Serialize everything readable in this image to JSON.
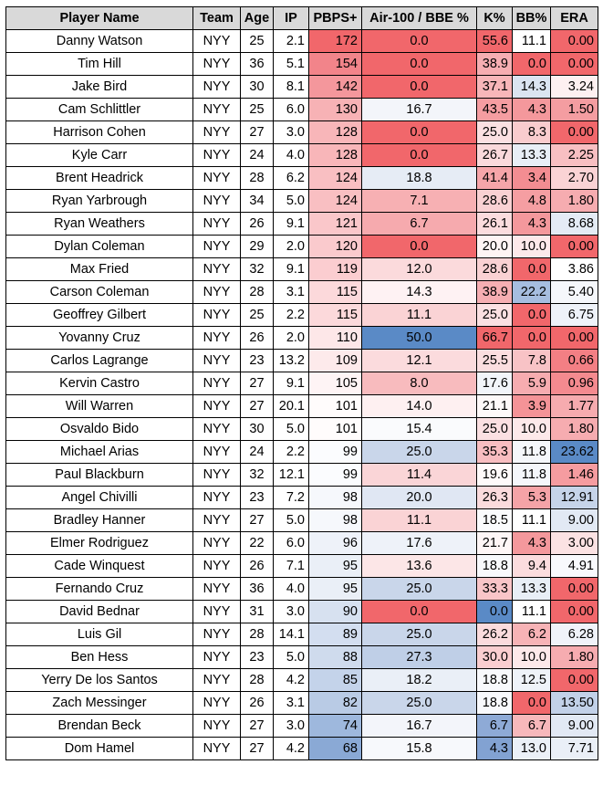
{
  "table": {
    "columns": [
      "Player Name",
      "Team",
      "Age",
      "IP",
      "PBPS+",
      "Air-100 / BBE %",
      "K%",
      "BB%",
      "ERA"
    ],
    "rows": [
      {
        "name": "Danny Watson",
        "team": "NYY",
        "age": "25",
        "ip": "2.1",
        "pbps": "172",
        "air": "0.0",
        "k": "55.6",
        "bb": "11.1",
        "era": "0.00",
        "c": {
          "pbps": "#f1676b",
          "air": "#f1676b",
          "k": "#f1676b",
          "bb": "#ffffff",
          "era": "#f1676b"
        }
      },
      {
        "name": "Tim Hill",
        "team": "NYY",
        "age": "36",
        "ip": "5.1",
        "pbps": "154",
        "air": "0.0",
        "k": "38.9",
        "bb": "0.0",
        "era": "0.00",
        "c": {
          "pbps": "#f2848a",
          "air": "#f1676b",
          "k": "#f6aeb2",
          "bb": "#f1676b",
          "era": "#f1676b"
        }
      },
      {
        "name": "Jake Bird",
        "team": "NYY",
        "age": "30",
        "ip": "8.1",
        "pbps": "142",
        "air": "0.0",
        "k": "37.1",
        "bb": "14.3",
        "era": "3.24",
        "c": {
          "pbps": "#f4979c",
          "air": "#f1676b",
          "k": "#f7b6b9",
          "bb": "#dbe4f1",
          "era": "#fdf0f1"
        }
      },
      {
        "name": "Cam Schlittler",
        "team": "NYY",
        "age": "25",
        "ip": "6.0",
        "pbps": "130",
        "air": "16.7",
        "k": "43.5",
        "bb": "4.3",
        "era": "1.50",
        "c": {
          "pbps": "#f7b2b5",
          "air": "#f3f5fa",
          "k": "#f59da1",
          "bb": "#f4989c",
          "era": "#f49da1"
        }
      },
      {
        "name": "Harrison Cohen",
        "team": "NYY",
        "age": "27",
        "ip": "3.0",
        "pbps": "128",
        "air": "0.0",
        "k": "25.0",
        "bb": "8.3",
        "era": "0.00",
        "c": {
          "pbps": "#f8b6b9",
          "air": "#f1676b",
          "k": "#fbe0e2",
          "bb": "#f9ccce",
          "era": "#f1676b"
        }
      },
      {
        "name": "Kyle Carr",
        "team": "NYY",
        "age": "24",
        "ip": "4.0",
        "pbps": "128",
        "air": "0.0",
        "k": "26.7",
        "bb": "13.3",
        "era": "2.25",
        "c": {
          "pbps": "#f8b6b9",
          "air": "#f1676b",
          "k": "#fad9db",
          "bb": "#e8eef6",
          "era": "#f8bfc2"
        }
      },
      {
        "name": "Brent Headrick",
        "team": "NYY",
        "age": "28",
        "ip": "6.2",
        "pbps": "124",
        "air": "18.8",
        "k": "41.4",
        "bb": "3.4",
        "era": "2.70",
        "c": {
          "pbps": "#f9bfc2",
          "air": "#e6ecf5",
          "k": "#f6a5a9",
          "bb": "#f38d92",
          "era": "#fad3d5"
        }
      },
      {
        "name": "Ryan Yarbrough",
        "team": "NYY",
        "age": "34",
        "ip": "5.0",
        "pbps": "124",
        "air": "7.1",
        "k": "28.6",
        "bb": "4.8",
        "era": "1.80",
        "c": {
          "pbps": "#f9bfc2",
          "air": "#f7b0b3",
          "k": "#f9d1d3",
          "bb": "#f59ea2",
          "era": "#f6acb0"
        }
      },
      {
        "name": "Ryan Weathers",
        "team": "NYY",
        "age": "26",
        "ip": "9.1",
        "pbps": "121",
        "air": "6.7",
        "k": "26.1",
        "bb": "4.3",
        "era": "8.68",
        "c": {
          "pbps": "#fac7ca",
          "air": "#f6aaae",
          "k": "#fbdcde",
          "bb": "#f4989c",
          "era": "#e4ebf5"
        }
      },
      {
        "name": "Dylan Coleman",
        "team": "NYY",
        "age": "29",
        "ip": "2.0",
        "pbps": "120",
        "air": "0.0",
        "k": "20.0",
        "bb": "10.0",
        "era": "0.00",
        "c": {
          "pbps": "#facacd",
          "air": "#f1676b",
          "k": "#fef4f4",
          "bb": "#fde9ea",
          "era": "#f1676b"
        }
      },
      {
        "name": "Max Fried",
        "team": "NYY",
        "age": "32",
        "ip": "9.1",
        "pbps": "119",
        "air": "12.0",
        "k": "28.6",
        "bb": "0.0",
        "era": "3.86",
        "c": {
          "pbps": "#fbcdd0",
          "air": "#fbdadc",
          "k": "#f9d1d3",
          "bb": "#f1676b",
          "era": "#ffffff"
        }
      },
      {
        "name": "Carson Coleman",
        "team": "NYY",
        "age": "28",
        "ip": "3.1",
        "pbps": "115",
        "air": "14.3",
        "k": "38.9",
        "bb": "22.2",
        "era": "5.40",
        "c": {
          "pbps": "#fcd9db",
          "air": "#fef2f3",
          "k": "#f6aeb2",
          "bb": "#a6bde0",
          "era": "#f5f7fb"
        }
      },
      {
        "name": "Geoffrey Gilbert",
        "team": "NYY",
        "age": "25",
        "ip": "2.2",
        "pbps": "115",
        "air": "11.1",
        "k": "25.0",
        "bb": "0.0",
        "era": "6.75",
        "c": {
          "pbps": "#fcd9db",
          "air": "#fad3d5",
          "k": "#fbe0e2",
          "bb": "#f1676b",
          "era": "#eef2f9"
        }
      },
      {
        "name": "Yovanny Cruz",
        "team": "NYY",
        "age": "26",
        "ip": "2.0",
        "pbps": "110",
        "air": "50.0",
        "k": "66.7",
        "bb": "0.0",
        "era": "0.00",
        "c": {
          "pbps": "#fde7e8",
          "air": "#5a8ac6",
          "k": "#f1676b",
          "bb": "#f1676b",
          "era": "#f1676b"
        }
      },
      {
        "name": "Carlos Lagrange",
        "team": "NYY",
        "age": "23",
        "ip": "13.2",
        "pbps": "109",
        "air": "12.1",
        "k": "25.5",
        "bb": "7.8",
        "era": "0.66",
        "c": {
          "pbps": "#fdeaeb",
          "air": "#fbdbdd",
          "k": "#fbdee0",
          "bb": "#f8c3c6",
          "era": "#f37f84"
        }
      },
      {
        "name": "Kervin Castro",
        "team": "NYY",
        "age": "27",
        "ip": "9.1",
        "pbps": "105",
        "air": "8.0",
        "k": "17.6",
        "bb": "5.9",
        "era": "0.96",
        "c": {
          "pbps": "#fef4f5",
          "air": "#f8bbbe",
          "k": "#f2f5fa",
          "bb": "#f6acb0",
          "era": "#f48a8f"
        }
      },
      {
        "name": "Will Warren",
        "team": "NYY",
        "age": "27",
        "ip": "20.1",
        "pbps": "101",
        "air": "14.0",
        "k": "21.1",
        "bb": "3.9",
        "era": "1.77",
        "c": {
          "pbps": "#fffcfc",
          "air": "#fef0f1",
          "k": "#fef9f9",
          "bb": "#f49397",
          "era": "#f6abaf"
        }
      },
      {
        "name": "Osvaldo Bido",
        "team": "NYY",
        "age": "30",
        "ip": "5.0",
        "pbps": "101",
        "air": "15.4",
        "k": "25.0",
        "bb": "10.0",
        "era": "1.80",
        "c": {
          "pbps": "#fffcfc",
          "air": "#fafbfd",
          "k": "#fbe0e2",
          "bb": "#fde9ea",
          "era": "#f6acb0"
        }
      },
      {
        "name": "Michael Arias",
        "team": "NYY",
        "age": "24",
        "ip": "2.2",
        "pbps": "99",
        "air": "25.0",
        "k": "35.3",
        "bb": "11.8",
        "era": "23.62",
        "c": {
          "pbps": "#fbfcfe",
          "air": "#c9d6ea",
          "k": "#f8bdc0",
          "bb": "#f5f7fb",
          "era": "#5a8ac6"
        }
      },
      {
        "name": "Paul Blackburn",
        "team": "NYY",
        "age": "32",
        "ip": "12.1",
        "pbps": "99",
        "air": "11.4",
        "k": "19.6",
        "bb": "11.8",
        "era": "1.46",
        "c": {
          "pbps": "#fbfcfe",
          "air": "#fad5d7",
          "k": "#fffafa",
          "bb": "#f5f7fb",
          "era": "#f59ca0"
        }
      },
      {
        "name": "Angel Chivilli",
        "team": "NYY",
        "age": "23",
        "ip": "7.2",
        "pbps": "98",
        "air": "20.0",
        "k": "26.3",
        "bb": "5.3",
        "era": "12.91",
        "c": {
          "pbps": "#f6f8fc",
          "air": "#e0e7f3",
          "k": "#fbdbdd",
          "bb": "#f5a3a7",
          "era": "#c6d4e9"
        }
      },
      {
        "name": "Bradley Hanner",
        "team": "NYY",
        "age": "27",
        "ip": "5.0",
        "pbps": "98",
        "air": "11.1",
        "k": "18.5",
        "bb": "11.1",
        "era": "9.00",
        "c": {
          "pbps": "#f6f8fc",
          "air": "#fad3d5",
          "k": "#fafbfd",
          "bb": "#ffffff",
          "era": "#e2e9f4"
        }
      },
      {
        "name": "Elmer Rodriguez",
        "team": "NYY",
        "age": "22",
        "ip": "6.0",
        "pbps": "96",
        "air": "17.6",
        "k": "21.7",
        "bb": "4.3",
        "era": "3.00",
        "c": {
          "pbps": "#eef2f9",
          "air": "#eef2f9",
          "k": "#fef6f6",
          "bb": "#f4989c",
          "era": "#fbe2e3"
        }
      },
      {
        "name": "Cade Winquest",
        "team": "NYY",
        "age": "26",
        "ip": "7.1",
        "pbps": "95",
        "air": "13.6",
        "k": "18.8",
        "bb": "9.4",
        "era": "4.91",
        "c": {
          "pbps": "#eaeff7",
          "air": "#fce6e7",
          "k": "#f8f9fc",
          "bb": "#fbdcde",
          "era": "#f8f9fc"
        }
      },
      {
        "name": "Fernando Cruz",
        "team": "NYY",
        "age": "36",
        "ip": "4.0",
        "pbps": "95",
        "air": "25.0",
        "k": "33.3",
        "bb": "13.3",
        "era": "0.00",
        "c": {
          "pbps": "#eaeff7",
          "air": "#c9d6ea",
          "k": "#f9c5c8",
          "bb": "#e8eef6",
          "era": "#f1676b"
        }
      },
      {
        "name": "David Bednar",
        "team": "NYY",
        "age": "31",
        "ip": "3.0",
        "pbps": "90",
        "air": "0.0",
        "k": "0.0",
        "bb": "11.1",
        "era": "0.00",
        "c": {
          "pbps": "#d7e1f0",
          "air": "#f1676b",
          "k": "#5a8ac6",
          "bb": "#ffffff",
          "era": "#f1676b"
        }
      },
      {
        "name": "Luis Gil",
        "team": "NYY",
        "age": "28",
        "ip": "14.1",
        "pbps": "89",
        "air": "25.0",
        "k": "26.2",
        "bb": "6.2",
        "era": "6.28",
        "c": {
          "pbps": "#d3def0",
          "air": "#c9d6ea",
          "k": "#fbdbdd",
          "bb": "#f7b3b6",
          "era": "#f0f3f9"
        }
      },
      {
        "name": "Ben Hess",
        "team": "NYY",
        "age": "23",
        "ip": "5.0",
        "pbps": "88",
        "air": "27.3",
        "k": "30.0",
        "bb": "10.0",
        "era": "1.80",
        "c": {
          "pbps": "#cfdbed",
          "air": "#bfcfe7",
          "k": "#face d0",
          "bb": "#fde9ea",
          "era": "#f6acb0"
        }
      },
      {
        "name": "Yerry De los Santos",
        "team": "NYY",
        "age": "28",
        "ip": "4.2",
        "pbps": "85",
        "air": "18.2",
        "k": "18.8",
        "bb": "12.5",
        "era": "0.00",
        "c": {
          "pbps": "#c4d3ea",
          "air": "#eaeff7",
          "k": "#f8f9fc",
          "bb": "#eff3f9",
          "era": "#f1676b"
        }
      },
      {
        "name": "Zach Messinger",
        "team": "NYY",
        "age": "26",
        "ip": "3.1",
        "pbps": "82",
        "air": "25.0",
        "k": "18.8",
        "bb": "0.0",
        "era": "13.50",
        "c": {
          "pbps": "#b9cbe5",
          "air": "#c9d6ea",
          "k": "#f8f9fc",
          "bb": "#f1676b",
          "era": "#c2d1e8"
        }
      },
      {
        "name": "Brendan Beck",
        "team": "NYY",
        "age": "27",
        "ip": "3.0",
        "pbps": "74",
        "air": "16.7",
        "k": "6.7",
        "bb": "6.7",
        "era": "9.00",
        "c": {
          "pbps": "#9eb8dd",
          "air": "#f3f5fa",
          "k": "#8eaad6",
          "bb": "#f7b8bb",
          "era": "#e2e9f4"
        }
      },
      {
        "name": "Dom Hamel",
        "team": "NYY",
        "age": "27",
        "ip": "4.2",
        "pbps": "68",
        "air": "15.8",
        "k": "4.3",
        "bb": "13.0",
        "era": "7.71",
        "c": {
          "pbps": "#8aa9d5",
          "air": "#f7f9fc",
          "k": "#82a2d2",
          "bb": "#ebf0f7",
          "era": "#eaeff7"
        }
      }
    ]
  }
}
